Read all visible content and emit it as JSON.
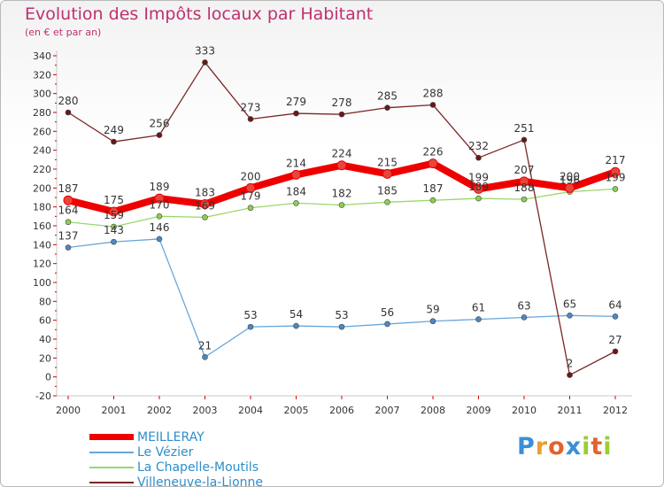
{
  "title": "Evolution des Impôts locaux par Habitant",
  "subtitle": "(en € et par an)",
  "logo": {
    "text": "Proxiti",
    "letters": [
      "P",
      "r",
      "o",
      "x",
      "i",
      "t",
      "i"
    ],
    "colors": [
      "#3b8fd6",
      "#e7a12c",
      "#e2632e",
      "#3b8fd6",
      "#9acd32",
      "#e2632e",
      "#9acd32"
    ]
  },
  "chart_data": {
    "type": "line",
    "title": "Evolution des Impôts locaux par Habitant",
    "subtitle": "(en € et par an)",
    "xlabel": "",
    "ylabel": "",
    "x": [
      "2000",
      "2001",
      "2002",
      "2003",
      "2004",
      "2005",
      "2006",
      "2007",
      "2008",
      "2009",
      "2010",
      "2011",
      "2012"
    ],
    "ylim": [
      -20,
      340
    ],
    "yticks": [
      -20,
      0,
      20,
      40,
      60,
      80,
      100,
      120,
      140,
      160,
      180,
      200,
      220,
      240,
      260,
      280,
      300,
      320,
      340
    ],
    "grid": false,
    "legend": "bottom-left",
    "series": [
      {
        "name": "MEILLERAY",
        "color": "#ee0000",
        "marker": "#e8463c",
        "thick": true,
        "values": [
          187,
          175,
          189,
          183,
          200,
          214,
          224,
          215,
          226,
          199,
          207,
          200,
          217
        ],
        "labels": [
          "187",
          "175",
          "189",
          "183",
          "200",
          "214",
          "224",
          "215",
          "226",
          "199",
          "207",
          "200",
          "217"
        ]
      },
      {
        "name": "Le Vézier",
        "color": "#6aa6d8",
        "marker": "#4a8ac4",
        "values": [
          137,
          143,
          146,
          21,
          53,
          54,
          53,
          56,
          59,
          61,
          63,
          65,
          64
        ],
        "labels": [
          "137",
          "143",
          "146",
          "21",
          "53",
          "54",
          "53",
          "56",
          "59",
          "61",
          "63",
          "65",
          "64"
        ]
      },
      {
        "name": "La Chapelle-Moutils",
        "color": "#9ad86a",
        "marker": "#8cd04e",
        "values": [
          164,
          159,
          170,
          169,
          179,
          184,
          182,
          185,
          187,
          189,
          188,
          196,
          199
        ],
        "labels": [
          "164",
          "159",
          "170",
          "169",
          "179",
          "184",
          "182",
          "185",
          "187",
          "189",
          "188",
          "196",
          "199"
        ]
      },
      {
        "name": "Villeneuve-la-Lionne",
        "color": "#7a2626",
        "marker": "#6a1818",
        "values": [
          280,
          249,
          256,
          333,
          273,
          279,
          278,
          285,
          288,
          232,
          251,
          2,
          27
        ],
        "labels": [
          "280",
          "249",
          "256",
          "333",
          "273",
          "279",
          "278",
          "285",
          "288",
          "232",
          "251",
          "2",
          "27"
        ]
      }
    ]
  }
}
